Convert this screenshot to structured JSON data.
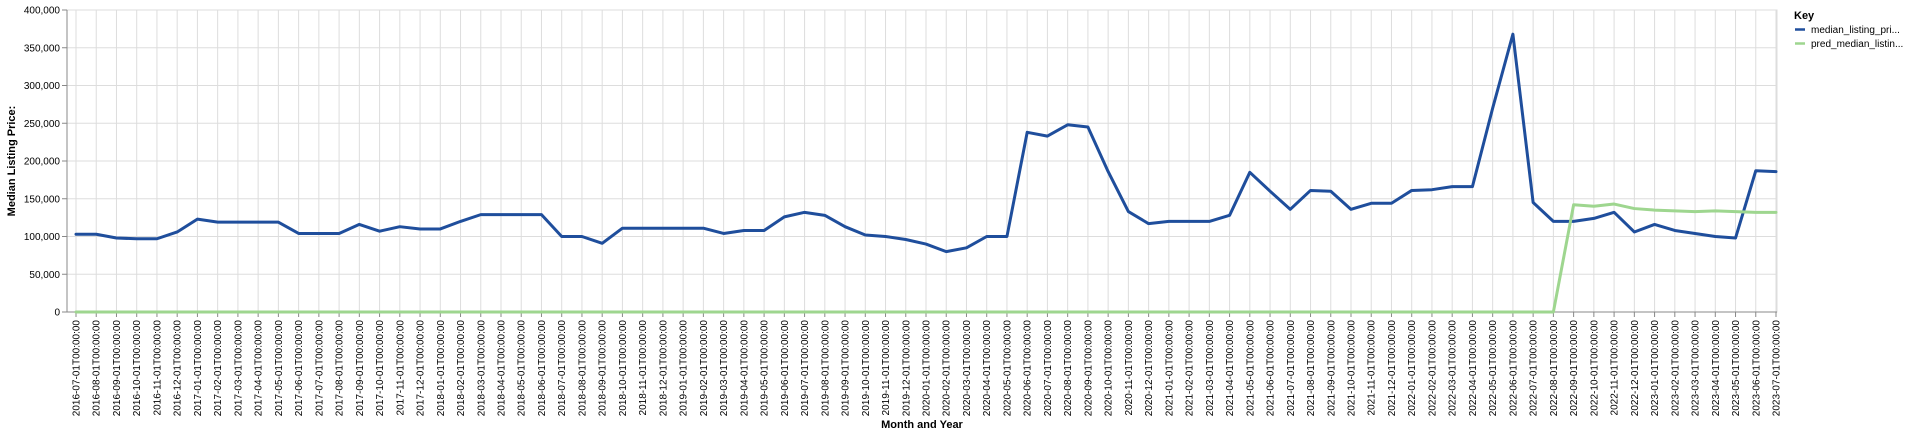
{
  "chart_data": {
    "type": "line",
    "title": "",
    "xlabel": "Month and Year",
    "ylabel": "Median Listing Price:",
    "ylim": [
      0,
      400000
    ],
    "y_ticks": [
      "0",
      "50,000",
      "100,000",
      "150,000",
      "200,000",
      "250,000",
      "300,000",
      "350,000",
      "400,000"
    ],
    "grid": true,
    "legend": {
      "title": "Key",
      "position": "top-right"
    },
    "x": [
      "2016-07-01T00:00:00",
      "2016-08-01T00:00:00",
      "2016-09-01T00:00:00",
      "2016-10-01T00:00:00",
      "2016-11-01T00:00:00",
      "2016-12-01T00:00:00",
      "2017-01-01T00:00:00",
      "2017-02-01T00:00:00",
      "2017-03-01T00:00:00",
      "2017-04-01T00:00:00",
      "2017-05-01T00:00:00",
      "2017-06-01T00:00:00",
      "2017-07-01T00:00:00",
      "2017-08-01T00:00:00",
      "2017-09-01T00:00:00",
      "2017-10-01T00:00:00",
      "2017-11-01T00:00:00",
      "2017-12-01T00:00:00",
      "2018-01-01T00:00:00",
      "2018-02-01T00:00:00",
      "2018-03-01T00:00:00",
      "2018-04-01T00:00:00",
      "2018-05-01T00:00:00",
      "2018-06-01T00:00:00",
      "2018-07-01T00:00:00",
      "2018-08-01T00:00:00",
      "2018-09-01T00:00:00",
      "2018-10-01T00:00:00",
      "2018-11-01T00:00:00",
      "2018-12-01T00:00:00",
      "2019-01-01T00:00:00",
      "2019-02-01T00:00:00",
      "2019-03-01T00:00:00",
      "2019-04-01T00:00:00",
      "2019-05-01T00:00:00",
      "2019-06-01T00:00:00",
      "2019-07-01T00:00:00",
      "2019-08-01T00:00:00",
      "2019-09-01T00:00:00",
      "2019-10-01T00:00:00",
      "2019-11-01T00:00:00",
      "2019-12-01T00:00:00",
      "2020-01-01T00:00:00",
      "2020-02-01T00:00:00",
      "2020-03-01T00:00:00",
      "2020-04-01T00:00:00",
      "2020-05-01T00:00:00",
      "2020-06-01T00:00:00",
      "2020-07-01T00:00:00",
      "2020-08-01T00:00:00",
      "2020-09-01T00:00:00",
      "2020-10-01T00:00:00",
      "2020-11-01T00:00:00",
      "2020-12-01T00:00:00",
      "2021-01-01T00:00:00",
      "2021-02-01T00:00:00",
      "2021-03-01T00:00:00",
      "2021-04-01T00:00:00",
      "2021-05-01T00:00:00",
      "2021-06-01T00:00:00",
      "2021-07-01T00:00:00",
      "2021-08-01T00:00:00",
      "2021-09-01T00:00:00",
      "2021-10-01T00:00:00",
      "2021-11-01T00:00:00",
      "2021-12-01T00:00:00",
      "2022-01-01T00:00:00",
      "2022-02-01T00:00:00",
      "2022-03-01T00:00:00",
      "2022-04-01T00:00:00",
      "2022-05-01T00:00:00",
      "2022-06-01T00:00:00",
      "2022-07-01T00:00:00",
      "2022-08-01T00:00:00",
      "2022-09-01T00:00:00",
      "2022-10-01T00:00:00",
      "2022-11-01T00:00:00",
      "2022-12-01T00:00:00",
      "2023-01-01T00:00:00",
      "2023-02-01T00:00:00",
      "2023-03-01T00:00:00",
      "2023-04-01T00:00:00",
      "2023-05-01T00:00:00",
      "2023-06-01T00:00:00",
      "2023-07-01T00:00:00"
    ],
    "series": [
      {
        "name": "median_listing_pri...",
        "color": "#1f4e9c",
        "values": [
          103000,
          103000,
          98000,
          97000,
          97000,
          106000,
          123000,
          119000,
          119000,
          119000,
          119000,
          104000,
          104000,
          104000,
          116000,
          107000,
          113000,
          110000,
          110000,
          120000,
          129000,
          129000,
          129000,
          129000,
          100000,
          100000,
          91000,
          111000,
          111000,
          111000,
          111000,
          111000,
          104000,
          108000,
          108000,
          126000,
          132000,
          128000,
          113000,
          102000,
          100000,
          96000,
          90000,
          80000,
          85000,
          100000,
          100000,
          238000,
          233000,
          248000,
          245000,
          186000,
          133000,
          117000,
          120000,
          120000,
          120000,
          128000,
          185000,
          160000,
          136000,
          161000,
          160000,
          136000,
          144000,
          144000,
          161000,
          162000,
          166000,
          166000,
          270000,
          368000,
          145000,
          120000,
          120000,
          124000,
          132000,
          106000,
          116000,
          108000,
          104000,
          100000,
          98000,
          187000,
          186000
        ]
      },
      {
        "name": "pred_median_listin...",
        "color": "#9ed68f",
        "values": [
          0,
          0,
          0,
          0,
          0,
          0,
          0,
          0,
          0,
          0,
          0,
          0,
          0,
          0,
          0,
          0,
          0,
          0,
          0,
          0,
          0,
          0,
          0,
          0,
          0,
          0,
          0,
          0,
          0,
          0,
          0,
          0,
          0,
          0,
          0,
          0,
          0,
          0,
          0,
          0,
          0,
          0,
          0,
          0,
          0,
          0,
          0,
          0,
          0,
          0,
          0,
          0,
          0,
          0,
          0,
          0,
          0,
          0,
          0,
          0,
          0,
          0,
          0,
          0,
          0,
          0,
          0,
          0,
          0,
          0,
          0,
          0,
          0,
          0,
          142000,
          140000,
          143000,
          137000,
          135000,
          134000,
          133000,
          134000,
          133000,
          132000,
          132000
        ]
      }
    ]
  }
}
